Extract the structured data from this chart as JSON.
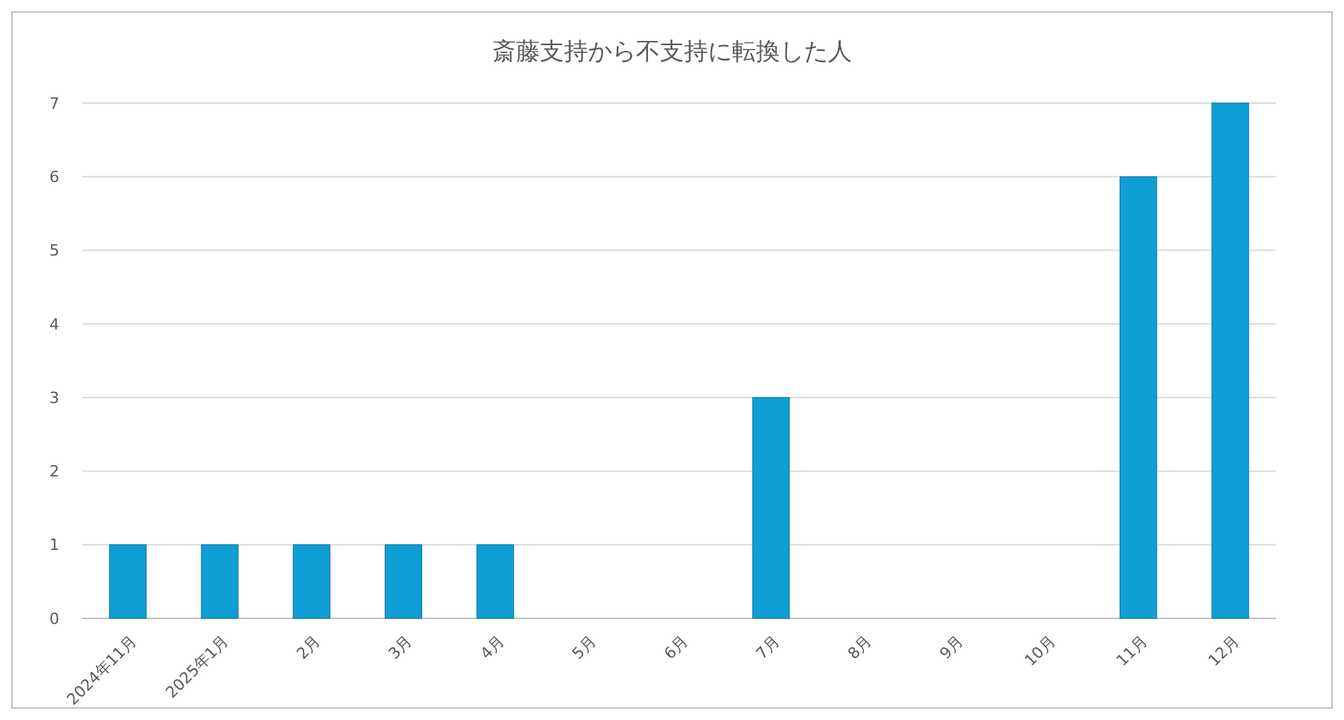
{
  "chart_data": {
    "type": "bar",
    "title": "斎藤支持から不支持に転換した人",
    "categories": [
      "2024年11月",
      "2025年1月",
      "2月",
      "3月",
      "4月",
      "5月",
      "6月",
      "7月",
      "8月",
      "9月",
      "10月",
      "11月",
      "12月"
    ],
    "values": [
      1,
      1,
      1,
      1,
      1,
      0,
      0,
      3,
      0,
      0,
      0,
      6,
      7
    ],
    "color": "#0e9fd6",
    "ylim": [
      0,
      7
    ],
    "yticks": [
      0,
      1,
      2,
      3,
      4,
      5,
      6,
      7
    ],
    "grid": "y"
  }
}
